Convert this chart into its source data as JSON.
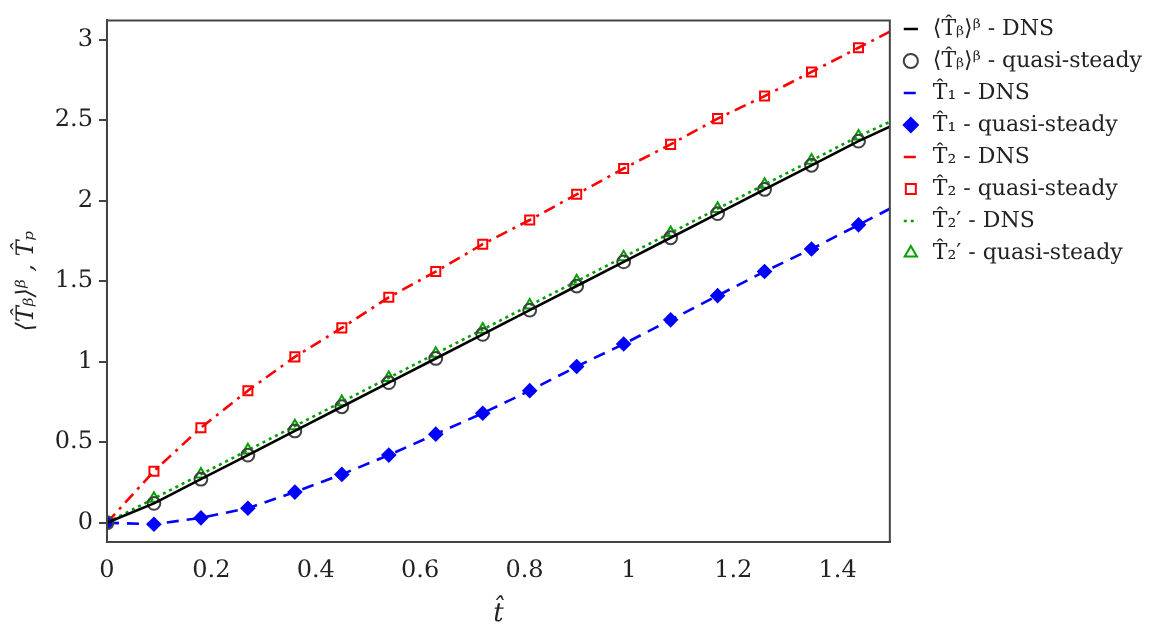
{
  "chart_data": {
    "type": "line",
    "xlabel": "t̂",
    "ylabel": "⟨T̂ᵦ⟩ᵝ , T̂ₚ",
    "xlim": [
      0,
      1.5
    ],
    "ylim": [
      -0.12,
      3.12
    ],
    "xticks": [
      0,
      0.2,
      0.4,
      0.6,
      0.8,
      1,
      1.2,
      1.4
    ],
    "yticks": [
      0,
      0.5,
      1,
      1.5,
      2,
      2.5,
      3
    ],
    "grid": false,
    "legend": "right",
    "series": [
      {
        "name": "⟨T̂ᵦ⟩ᵝ - DNS",
        "type": "line",
        "marker": "none",
        "line_style": "solid",
        "color": "#000000",
        "x": [
          0,
          0.09,
          0.18,
          0.27,
          0.36,
          0.45,
          0.54,
          0.63,
          0.72,
          0.81,
          0.9,
          0.99,
          1.08,
          1.17,
          1.26,
          1.35,
          1.44,
          1.5
        ],
        "values": [
          0,
          0.12,
          0.27,
          0.42,
          0.57,
          0.72,
          0.87,
          1.02,
          1.17,
          1.32,
          1.47,
          1.62,
          1.77,
          1.92,
          2.07,
          2.22,
          2.37,
          2.46
        ]
      },
      {
        "name": "⟨T̂ᵦ⟩ᵝ - quasi-steady",
        "type": "scatter",
        "marker": "circle",
        "color": "#404040",
        "x": [
          0,
          0.09,
          0.18,
          0.27,
          0.36,
          0.45,
          0.54,
          0.63,
          0.72,
          0.81,
          0.9,
          0.99,
          1.08,
          1.17,
          1.26,
          1.35,
          1.44
        ],
        "values": [
          0,
          0.12,
          0.27,
          0.42,
          0.57,
          0.72,
          0.87,
          1.02,
          1.17,
          1.32,
          1.47,
          1.62,
          1.77,
          1.92,
          2.07,
          2.22,
          2.37
        ]
      },
      {
        "name": "T̂₁ - DNS",
        "type": "line",
        "marker": "none",
        "line_style": "dashed",
        "color": "#0000ff",
        "x": [
          0,
          0.09,
          0.18,
          0.27,
          0.36,
          0.45,
          0.54,
          0.63,
          0.72,
          0.81,
          0.9,
          0.99,
          1.08,
          1.17,
          1.26,
          1.35,
          1.44,
          1.5
        ],
        "values": [
          0,
          -0.01,
          0.03,
          0.09,
          0.19,
          0.3,
          0.42,
          0.55,
          0.68,
          0.82,
          0.97,
          1.11,
          1.26,
          1.41,
          1.56,
          1.7,
          1.85,
          1.95
        ]
      },
      {
        "name": "T̂₁ - quasi-steady",
        "type": "scatter",
        "marker": "diamond",
        "color": "#0000ff",
        "x": [
          0,
          0.09,
          0.18,
          0.27,
          0.36,
          0.45,
          0.54,
          0.63,
          0.72,
          0.81,
          0.9,
          0.99,
          1.08,
          1.17,
          1.26,
          1.35,
          1.44
        ],
        "values": [
          0,
          -0.01,
          0.03,
          0.09,
          0.19,
          0.3,
          0.42,
          0.55,
          0.68,
          0.82,
          0.97,
          1.11,
          1.26,
          1.41,
          1.56,
          1.7,
          1.85
        ]
      },
      {
        "name": "T̂₂ - DNS",
        "type": "line",
        "marker": "none",
        "line_style": "dashdot",
        "color": "#ff0000",
        "x": [
          0,
          0.09,
          0.18,
          0.27,
          0.36,
          0.45,
          0.54,
          0.63,
          0.72,
          0.81,
          0.9,
          0.99,
          1.08,
          1.17,
          1.26,
          1.35,
          1.44,
          1.5
        ],
        "values": [
          0,
          0.32,
          0.59,
          0.82,
          1.03,
          1.21,
          1.4,
          1.56,
          1.73,
          1.88,
          2.04,
          2.2,
          2.35,
          2.51,
          2.65,
          2.8,
          2.95,
          3.05
        ]
      },
      {
        "name": "T̂₂ - quasi-steady",
        "type": "scatter",
        "marker": "square",
        "color": "#ff0000",
        "x": [
          0,
          0.09,
          0.18,
          0.27,
          0.36,
          0.45,
          0.54,
          0.63,
          0.72,
          0.81,
          0.9,
          0.99,
          1.08,
          1.17,
          1.26,
          1.35,
          1.44
        ],
        "values": [
          0,
          0.32,
          0.59,
          0.82,
          1.03,
          1.21,
          1.4,
          1.56,
          1.73,
          1.88,
          2.04,
          2.2,
          2.35,
          2.51,
          2.65,
          2.8,
          2.95
        ]
      },
      {
        "name": "T̂₂′ - DNS",
        "type": "line",
        "marker": "none",
        "line_style": "dotted",
        "color": "#00a000",
        "x": [
          0,
          0.09,
          0.18,
          0.27,
          0.36,
          0.45,
          0.54,
          0.63,
          0.72,
          0.81,
          0.9,
          0.99,
          1.08,
          1.17,
          1.26,
          1.35,
          1.44,
          1.5
        ],
        "values": [
          0,
          0.15,
          0.3,
          0.45,
          0.6,
          0.75,
          0.9,
          1.05,
          1.2,
          1.35,
          1.5,
          1.65,
          1.8,
          1.95,
          2.1,
          2.25,
          2.4,
          2.49
        ]
      },
      {
        "name": "T̂₂′ - quasi-steady",
        "type": "scatter",
        "marker": "triangle",
        "color": "#00a000",
        "x": [
          0.09,
          0.18,
          0.27,
          0.36,
          0.45,
          0.54,
          0.63,
          0.72,
          0.81,
          0.9,
          0.99,
          1.08,
          1.17,
          1.26,
          1.35,
          1.44
        ],
        "values": [
          0.15,
          0.3,
          0.45,
          0.6,
          0.75,
          0.9,
          1.05,
          1.2,
          1.35,
          1.5,
          1.65,
          1.8,
          1.95,
          2.1,
          2.25,
          2.4
        ]
      }
    ]
  }
}
